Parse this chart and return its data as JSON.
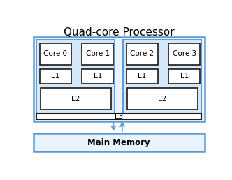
{
  "title": "Quad-core Processor",
  "title_fontsize": 11,
  "fig_bg": "#ffffff",
  "box_bg": "#ffffff",
  "proc_fill": "#EAF2FB",
  "cluster_fill": "#D6E8F7",
  "inner_fill": "#ffffff",
  "proc_border_color": "#5B9BD5",
  "cluster_border_color": "#5B9BD5",
  "inner_border_color": "#1a1a1a",
  "l3_border_color": "#1a1a1a",
  "arrow_color": "#5B9BD5",
  "label_fontsize": 7.5,
  "mem_fontsize": 8.5,
  "cores": [
    "Core 0",
    "Core 1",
    "Core 2",
    "Core 3"
  ],
  "l1_label": "L1",
  "l2_label": "L2",
  "l3_label": "L3",
  "memory_label": "Main Memory"
}
